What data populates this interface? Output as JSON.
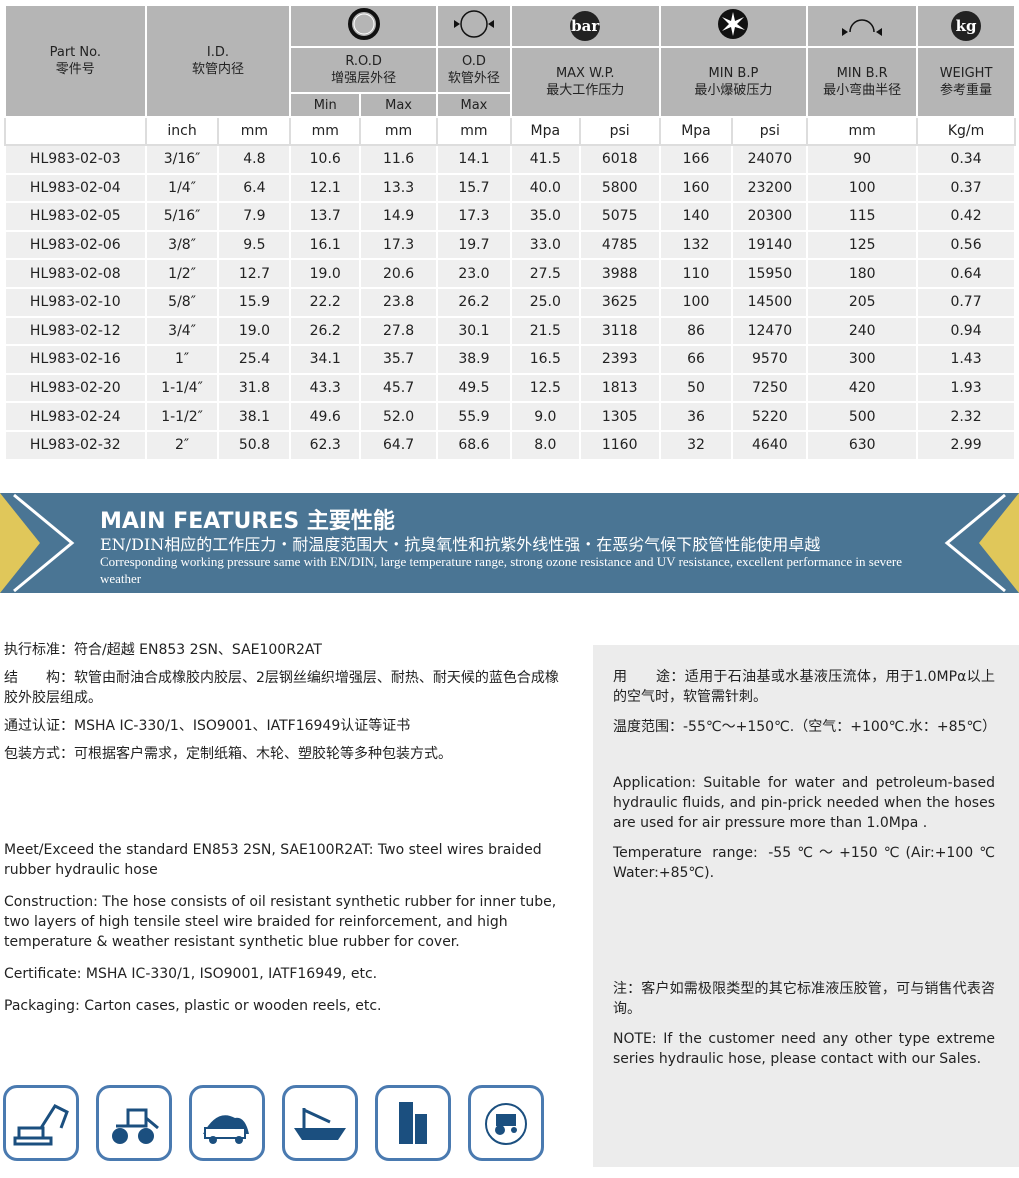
{
  "table": {
    "headers": {
      "part_no": "Part No.",
      "part_no_zh": "零件号",
      "id": "I.D.",
      "id_zh": "软管内径",
      "rod": "R.O.D",
      "rod_zh": "增强层外径",
      "od": "O.D",
      "od_zh": "软管外径",
      "wp": "MAX W.P.",
      "wp_zh": "最大工作压力",
      "bp": "MIN B.P",
      "bp_zh": "最小爆破压力",
      "br": "MIN B.R",
      "br_zh": "最小弯曲半径",
      "weight": "WEIGHT",
      "weight_zh": "参考重量",
      "min": "Min",
      "max": "Max",
      "od_max": "Max",
      "bar_icon": "bar",
      "kg_icon": "kg"
    },
    "units": [
      "inch",
      "mm",
      "mm",
      "mm",
      "mm",
      "Mpa",
      "psi",
      "Mpa",
      "psi",
      "mm",
      "Kg/m"
    ],
    "rows": [
      [
        "HL983-02-03",
        "3/16″",
        "4.8",
        "10.6",
        "11.6",
        "14.1",
        "41.5",
        "6018",
        "166",
        "24070",
        "90",
        "0.34"
      ],
      [
        "HL983-02-04",
        "1/4″",
        "6.4",
        "12.1",
        "13.3",
        "15.7",
        "40.0",
        "5800",
        "160",
        "23200",
        "100",
        "0.37"
      ],
      [
        "HL983-02-05",
        "5/16″",
        "7.9",
        "13.7",
        "14.9",
        "17.3",
        "35.0",
        "5075",
        "140",
        "20300",
        "115",
        "0.42"
      ],
      [
        "HL983-02-06",
        "3/8″",
        "9.5",
        "16.1",
        "17.3",
        "19.7",
        "33.0",
        "4785",
        "132",
        "19140",
        "125",
        "0.56"
      ],
      [
        "HL983-02-08",
        "1/2″",
        "12.7",
        "19.0",
        "20.6",
        "23.0",
        "27.5",
        "3988",
        "110",
        "15950",
        "180",
        "0.64"
      ],
      [
        "HL983-02-10",
        "5/8″",
        "15.9",
        "22.2",
        "23.8",
        "26.2",
        "25.0",
        "3625",
        "100",
        "14500",
        "205",
        "0.77"
      ],
      [
        "HL983-02-12",
        "3/4″",
        "19.0",
        "26.2",
        "27.8",
        "30.1",
        "21.5",
        "3118",
        "86",
        "12470",
        "240",
        "0.94"
      ],
      [
        "HL983-02-16",
        "1″",
        "25.4",
        "34.1",
        "35.7",
        "38.9",
        "16.5",
        "2393",
        "66",
        "9570",
        "300",
        "1.43"
      ],
      [
        "HL983-02-20",
        "1-1/4″",
        "31.8",
        "43.3",
        "45.7",
        "49.5",
        "12.5",
        "1813",
        "50",
        "7250",
        "420",
        "1.93"
      ],
      [
        "HL983-02-24",
        "1-1/2″",
        "38.1",
        "49.6",
        "52.0",
        "55.9",
        "9.0",
        "1305",
        "36",
        "5220",
        "500",
        "2.32"
      ],
      [
        "HL983-02-32",
        "2″",
        "50.8",
        "62.3",
        "64.7",
        "68.6",
        "8.0",
        "1160",
        "32",
        "4640",
        "630",
        "2.99"
      ]
    ]
  },
  "banner": {
    "title": "MAIN FEATURES 主要性能",
    "zh": "EN/DIN相应的工作压力・耐温度范围大・抗臭氧性和抗紫外线性强・在恶劣气候下胶管性能使用卓越",
    "en": "Corresponding working pressure same with EN/DIN, large temperature range, strong ozone resistance and UV resistance, excellent performance in severe weather",
    "color": "#4a7594",
    "accent": "#e0c75a"
  },
  "left": {
    "zh": [
      "执行标准：符合/超越 EN853 2SN、SAE100R2AT",
      "结　　构：软管由耐油合成橡胶内胶层、2层钢丝编织增强层、耐热、耐天候的蓝色合成橡胶外胶层组成。",
      "通过认证：MSHA IC-330/1、ISO9001、IATF16949认证等证书",
      "包装方式：可根据客户需求，定制纸箱、木轮、塑胶轮等多种包装方式。"
    ],
    "en": [
      "Meet/Exceed the standard  EN853 2SN, SAE100R2AT: Two steel wires braided rubber hydraulic hose",
      "Construction: The hose consists of oil resistant synthetic rubber for inner tube, two layers of high tensile steel wire braided for reinforcement, and high temperature & weather resistant synthetic blue rubber for cover.",
      "Certificate: MSHA IC-330/1, ISO9001, IATF16949, etc.",
      "Packaging: Carton cases, plastic or wooden reels, etc."
    ]
  },
  "right": {
    "zh": [
      "用　　途：适用于石油基或水基液压流体，用于1.0MPα以上的空气时，软管需针刺。",
      "温度范围：-55℃～+150℃.（空气：+100℃.水：+85℃）"
    ],
    "en": [
      "Application: Suitable for water and petroleum-based hydraulic fluids, and pin-prick needed when the hoses are used for air pressure more than 1.0Mpa .",
      "Temperature range: -55℃～+150℃(Air:+100℃ Water:+85℃)."
    ],
    "note_zh": "注：客户如需极限类型的其它标准液压胶管，可与销售代表咨询。",
    "note_en": "NOTE: If the customer need any other type extreme series hydraulic hose, please contact with our Sales."
  },
  "applications": [
    "excavator-icon",
    "loader-icon",
    "truck-icon",
    "ship-icon",
    "building-icon",
    "tractor-icon"
  ]
}
